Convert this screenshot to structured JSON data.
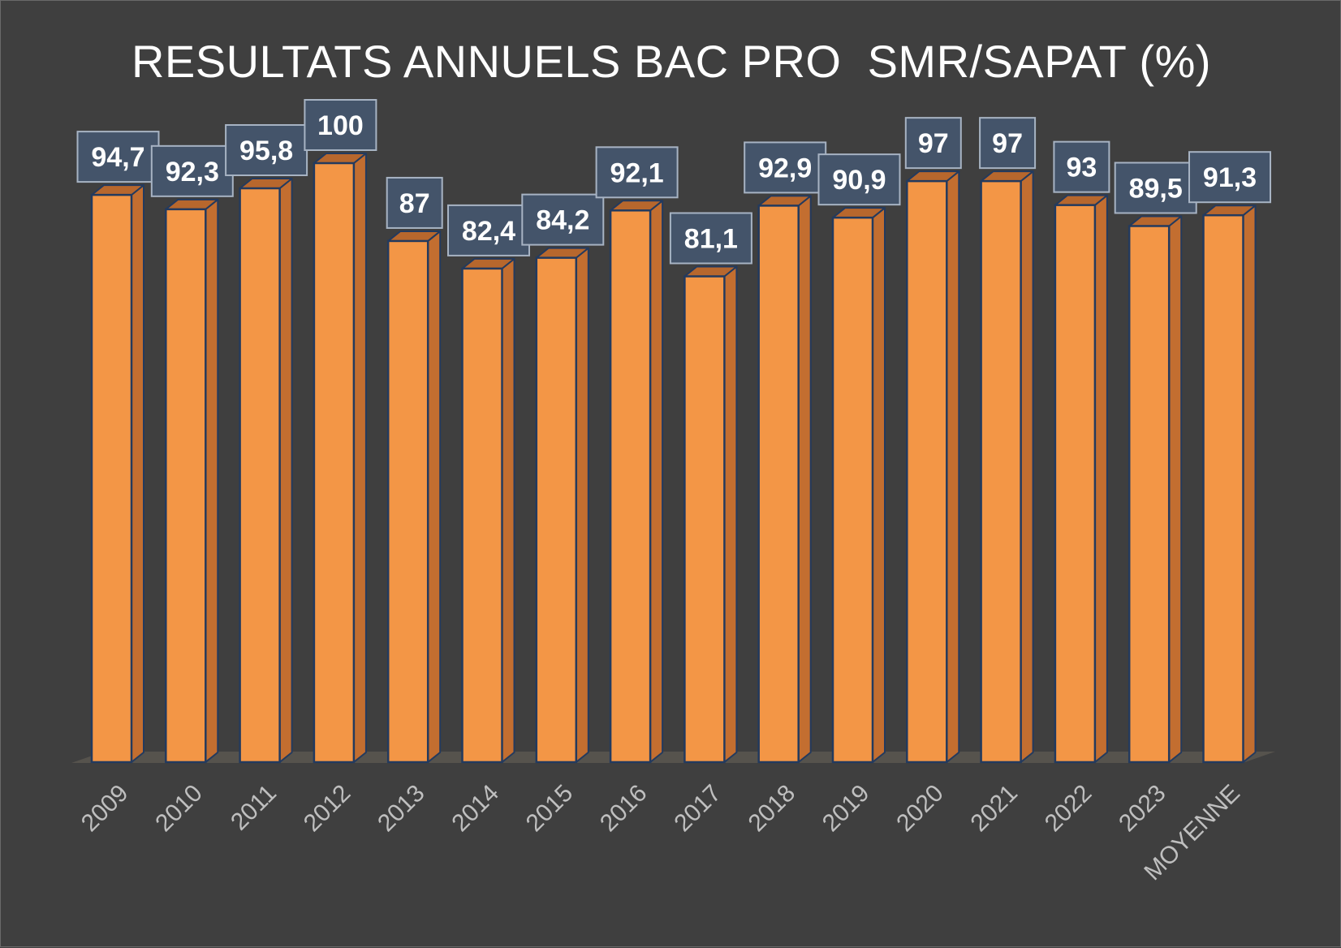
{
  "chart_data": {
    "type": "bar",
    "title": "RESULTATS ANNUELS BAC PRO  SMR/SAPAT (%)",
    "categories": [
      "2009",
      "2010",
      "2011",
      "2012",
      "2013",
      "2014",
      "2015",
      "2016",
      "2017",
      "2018",
      "2019",
      "2020",
      "2021",
      "2022",
      "2023",
      "MOYENNE"
    ],
    "series": [
      {
        "values": [
          94.7,
          92.3,
          95.8,
          100,
          87,
          82.4,
          84.2,
          92.1,
          81.1,
          92.9,
          90.9,
          97,
          97,
          93,
          89.5,
          91.3
        ]
      }
    ],
    "data_labels": [
      "94,7",
      "92,3",
      "95,8",
      "100",
      "87",
      "82,4",
      "84,2",
      "92,1",
      "81,1",
      "92,9",
      "90,9",
      "97",
      "97",
      "93",
      "89,5",
      "91,3"
    ],
    "ylim": [
      0,
      100
    ],
    "grid": false,
    "legend": "none",
    "style": "3d-column",
    "colors": {
      "bar_front": "#f39646",
      "bar_side": "#c36e30",
      "bar_top": "#b7672d",
      "bar_outline": "#233a5e",
      "label_box": "#44546a",
      "label_border": "#a7b3c3",
      "label_text": "#ffffff",
      "axis_text": "#bfbfbf",
      "floor": "#5a5750",
      "background": "#3f3f3f"
    }
  }
}
